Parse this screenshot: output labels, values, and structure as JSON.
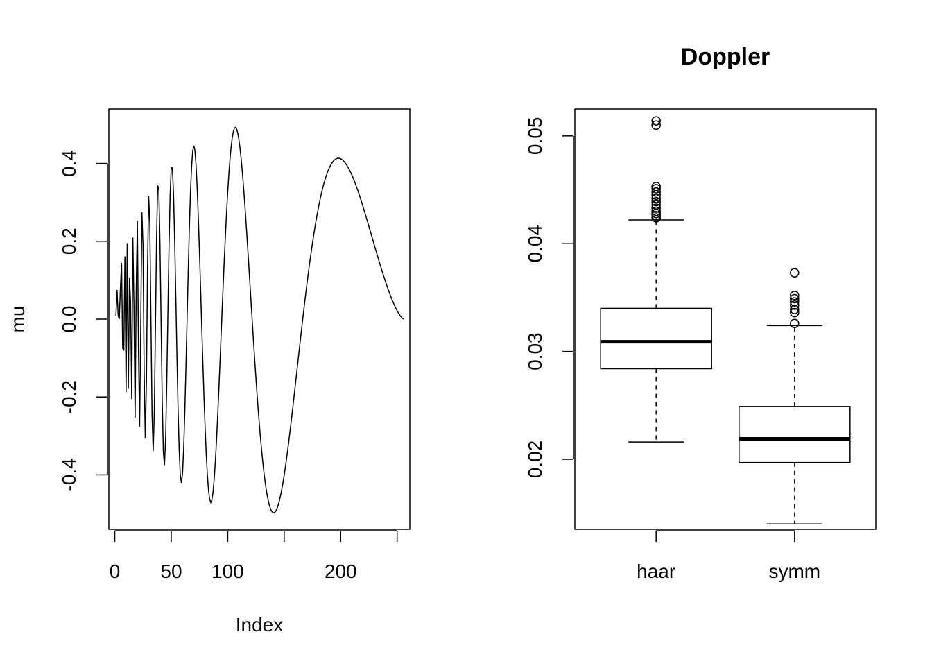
{
  "chart_data": [
    {
      "type": "line",
      "title": "",
      "xlabel": "Index",
      "ylabel": "mu",
      "xlim": [
        0,
        256
      ],
      "ylim": [
        -0.5,
        0.5
      ],
      "x_ticks": [
        0,
        50,
        100,
        150,
        200,
        250
      ],
      "x_tick_labels": [
        "0",
        "50",
        "100",
        "",
        "200",
        ""
      ],
      "y_ticks": [
        -0.4,
        -0.2,
        0.0,
        0.2,
        0.4
      ],
      "y_tick_labels": [
        "-0.4",
        "-0.2",
        "0.0",
        "0.2",
        "0.4"
      ],
      "grid": false,
      "series": [
        {
          "function": "doppler",
          "x": [
            1,
            256
          ],
          "n": 256,
          "color": "#000000"
        }
      ],
      "extrema": [
        {
          "x": 69,
          "y": 0.44
        },
        {
          "x": 86,
          "y": -0.47
        },
        {
          "x": 106,
          "y": 0.49
        },
        {
          "x": 140,
          "y": -0.5
        },
        {
          "x": 200,
          "y": 0.41
        },
        {
          "x": 256,
          "y": 0.0
        }
      ]
    },
    {
      "type": "boxplot",
      "title": "Doppler",
      "xlabel": "",
      "ylabel": "",
      "ylim": [
        0.0135,
        0.0525
      ],
      "y_ticks": [
        0.02,
        0.03,
        0.04,
        0.05
      ],
      "y_tick_labels": [
        "0.02",
        "0.03",
        "0.04",
        "0.05"
      ],
      "categories": [
        "haar",
        "symm"
      ],
      "boxes": [
        {
          "name": "haar",
          "whisker_low": 0.0216,
          "q1": 0.0284,
          "median": 0.0309,
          "q3": 0.034,
          "whisker_high": 0.0422,
          "outliers": [
            0.0424,
            0.0426,
            0.0428,
            0.043,
            0.0433,
            0.0436,
            0.0439,
            0.0442,
            0.0445,
            0.0448,
            0.0451,
            0.0453,
            0.051,
            0.0514
          ]
        },
        {
          "name": "symm",
          "whisker_low": 0.014,
          "q1": 0.0197,
          "median": 0.0219,
          "q3": 0.0249,
          "whisker_high": 0.0324,
          "outliers": [
            0.0326,
            0.0336,
            0.0339,
            0.0343,
            0.0346,
            0.0349,
            0.0352,
            0.0373
          ]
        }
      ]
    }
  ]
}
